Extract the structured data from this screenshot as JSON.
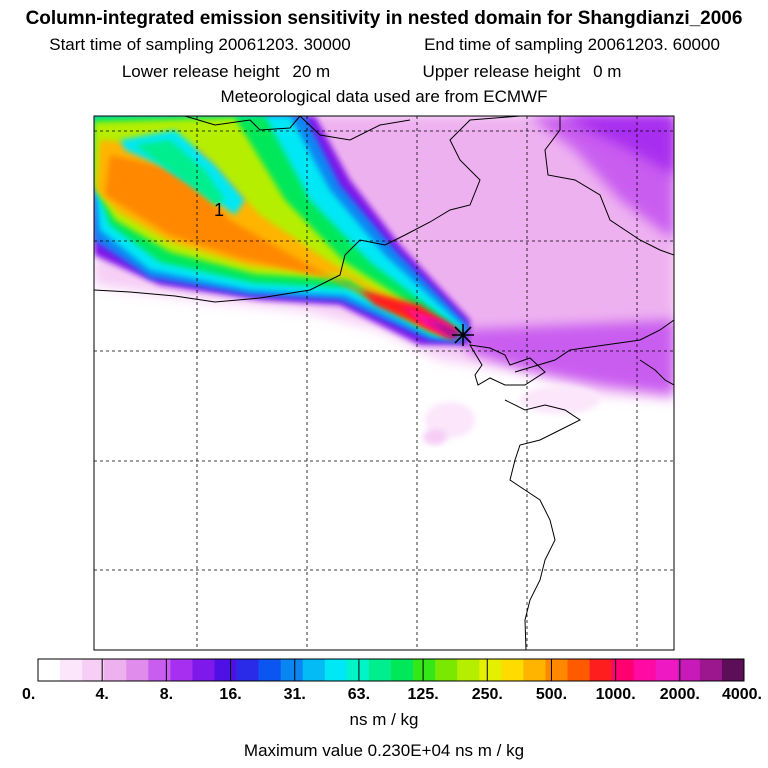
{
  "title": "Column-integrated emission sensitivity in nested domain for Shangdianzi_2006",
  "sampling": {
    "start_label": "Start time of sampling",
    "start_value": "20061203. 30000",
    "end_label": "End time of sampling",
    "end_value": "20061203. 60000"
  },
  "release": {
    "lower_label": "Lower release height",
    "lower_value": "20 m",
    "upper_label": "Upper release height",
    "upper_value": "0 m"
  },
  "meteo_line": "Meteorological data used are from ECMWF",
  "map": {
    "contour_label": "1",
    "receptor_marker": "star-marker"
  },
  "colorbar": {
    "tick_labels": [
      "0.",
      "4.",
      "8.",
      "16.",
      "31.",
      "63.",
      "125.",
      "250.",
      "500.",
      "1000.",
      "2000.",
      "4000."
    ],
    "colors": [
      "#ffffff",
      "#fbe6fb",
      "#f6cef6",
      "#eeb1f0",
      "#e08cec",
      "#c95df0",
      "#a72fef",
      "#7f18ea",
      "#4f10e6",
      "#2a2be9",
      "#0b55f1",
      "#0a86f3",
      "#05bbf6",
      "#00e8f5",
      "#00f4c8",
      "#00ee8e",
      "#00e85a",
      "#33e816",
      "#7ae800",
      "#b6ee00",
      "#e5f000",
      "#ffdb00",
      "#ffb400",
      "#ff8800",
      "#ff5a00",
      "#ff1e1e",
      "#ff0070",
      "#ff0aa3",
      "#ee19c3",
      "#c81ab9",
      "#9c178d",
      "#5c0f58"
    ],
    "unit": "ns m / kg"
  },
  "max_value_line": "Maximum value  0.230E+04 ns m / kg"
}
